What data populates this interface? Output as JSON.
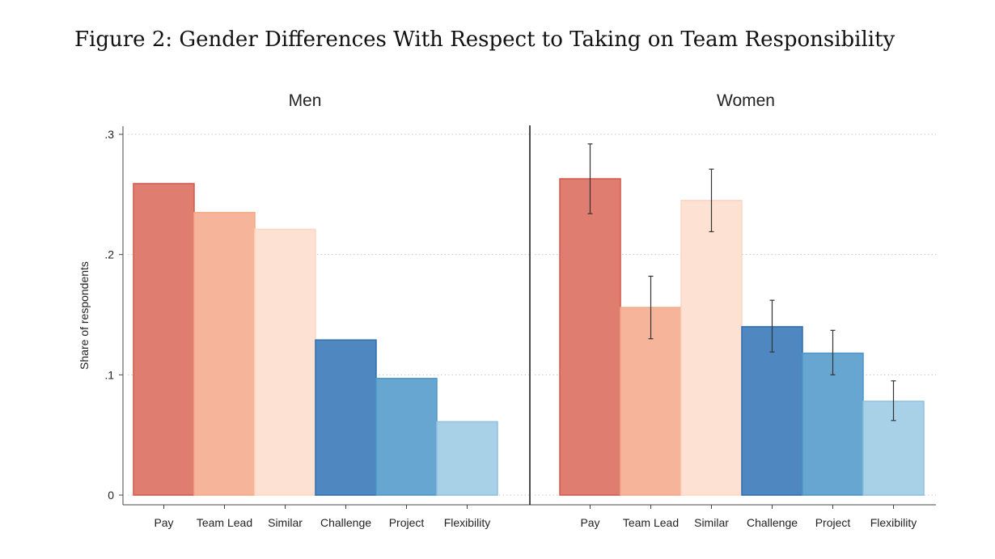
{
  "figure": {
    "caption": "Figure 2: Gender Differences With Respect to Taking on Team Responsibility"
  },
  "chart_data": {
    "type": "bar",
    "ylabel": "Share of respondents",
    "ylim": [
      0,
      0.3
    ],
    "yticks": [
      {
        "value": 0,
        "label": "0"
      },
      {
        "value": 0.1,
        "label": ".1"
      },
      {
        "value": 0.2,
        "label": ".2"
      },
      {
        "value": 0.3,
        "label": ".3"
      }
    ],
    "grid": true,
    "categories": [
      "Pay",
      "Team Lead",
      "Similar",
      "Challenge",
      "Project",
      "Flexibility"
    ],
    "colors": [
      "#df7e70",
      "#f6b59a",
      "#fde1d3",
      "#4f87c0",
      "#66a6d1",
      "#a8d0e7"
    ],
    "edge_colors": [
      "#d2584a",
      "#f4a989",
      "#fcd6c3",
      "#2f6fb0",
      "#4d97c8",
      "#8fc1df"
    ],
    "panels": [
      {
        "title": "Men",
        "values": [
          0.259,
          0.235,
          0.221,
          0.129,
          0.097,
          0.061
        ],
        "error_bars": null
      },
      {
        "title": "Women",
        "values": [
          0.263,
          0.156,
          0.245,
          0.14,
          0.118,
          0.078
        ],
        "error_bars": [
          [
            0.234,
            0.292
          ],
          [
            0.13,
            0.182
          ],
          [
            0.219,
            0.271
          ],
          [
            0.119,
            0.162
          ],
          [
            0.1,
            0.137
          ],
          [
            0.062,
            0.095
          ]
        ]
      }
    ]
  }
}
